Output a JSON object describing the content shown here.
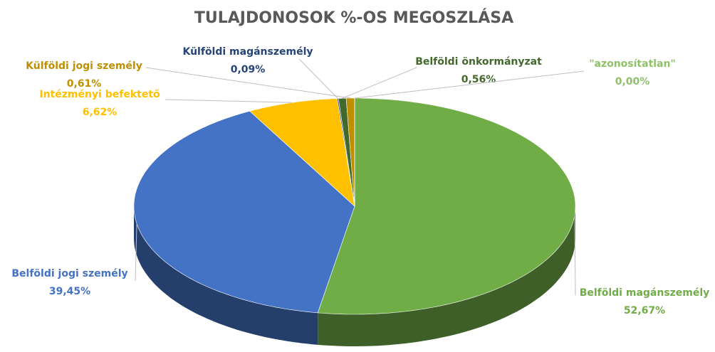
{
  "chart_data": {
    "type": "pie3d",
    "title": "TULAJDONOSOK %-OS MEGOSZLÁSA",
    "categories": [
      "Belföldi magánszemély",
      "Belföldi jogi személy",
      "Intézményi befektető",
      "Külföldi magánszemély",
      "Belföldi önkormányzat",
      "Külföldi jogi személy",
      "\"azonosítatlan\""
    ],
    "values": [
      52.67,
      39.45,
      6.62,
      0.09,
      0.56,
      0.61,
      0.0
    ],
    "value_labels": [
      "52,67%",
      "39,45%",
      "6,62%",
      "0,09%",
      "0,56%",
      "0,61%",
      "0,00%"
    ],
    "colors": [
      "#70ad47",
      "#4472c4",
      "#ffc000",
      "#264478",
      "#43682b",
      "#bf8f00",
      "#a9d18e"
    ]
  }
}
